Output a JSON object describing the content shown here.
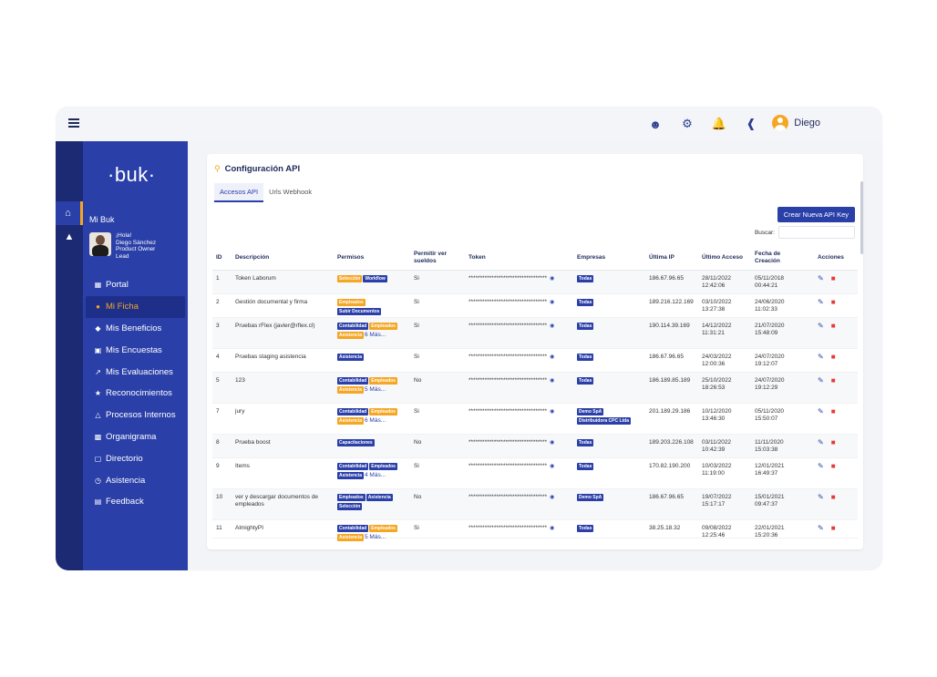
{
  "topbar": {
    "icons": [
      "user-search-icon",
      "gear-icon",
      "bell-icon",
      "megaphone-icon",
      "help-icon"
    ],
    "user_name": "Diego"
  },
  "sidebar": {
    "logo": "·buk·",
    "section": "Mi Buk",
    "profile": {
      "greeting": "¡Hola!",
      "name": "Diego Sánchez",
      "role": "Product Owner Lead"
    },
    "items": [
      {
        "label": "Portal",
        "icon": "portal-icon"
      },
      {
        "label": "Mi Ficha",
        "icon": "user-circle-icon",
        "active": true
      },
      {
        "label": "Mis Beneficios",
        "icon": "tag-icon"
      },
      {
        "label": "Mis Encuestas",
        "icon": "survey-icon"
      },
      {
        "label": "Mis Evaluaciones",
        "icon": "trend-icon"
      },
      {
        "label": "Reconocimientos",
        "icon": "trophy-icon"
      },
      {
        "label": "Procesos Internos",
        "icon": "process-icon"
      },
      {
        "label": "Organigrama",
        "icon": "org-chart-icon"
      },
      {
        "label": "Directorio",
        "icon": "directory-icon"
      },
      {
        "label": "Asistencia",
        "icon": "clock-icon"
      },
      {
        "label": "Feedback",
        "icon": "feedback-icon"
      }
    ]
  },
  "card": {
    "title": "Configuración API",
    "tabs": [
      "Accesos API",
      "Urls Webhook"
    ],
    "create_button": "Crear Nueva API Key",
    "search_label": "Buscar:",
    "columns": [
      "ID",
      "Descripción",
      "Permisos",
      "Permitir ver sueldos",
      "Token",
      "Empresas",
      "Última IP",
      "Último Acceso",
      "Fecha de Creación",
      "Acciones"
    ],
    "rows": [
      {
        "id": "1",
        "desc": "Token Laborum",
        "perms": [
          {
            "t": "Selección",
            "c": "orange"
          },
          {
            "t": "Workflow",
            "c": "blue"
          }
        ],
        "more": "",
        "sueldos": "Si",
        "token": "**********************************",
        "empresas": [
          "Todas"
        ],
        "ip": "186.67.96.65",
        "acceso": "28/11/2022 12:42:06",
        "creacion": "05/11/2018 00:44:21"
      },
      {
        "id": "2",
        "desc": "Gestión documental y firma",
        "perms": [
          {
            "t": "Empleados",
            "c": "orange"
          },
          {
            "t": "Subir Documentos",
            "c": "blue"
          }
        ],
        "more": "",
        "sueldos": "Si",
        "token": "**********************************",
        "empresas": [
          "Todas"
        ],
        "ip": "189.216.122.169",
        "acceso": "03/10/2022 13:27:38",
        "creacion": "24/06/2020 11:02:33"
      },
      {
        "id": "3",
        "desc": "Pruebas rFlex (javier@rflex.cl)",
        "perms": [
          {
            "t": "Contabilidad",
            "c": "blue"
          },
          {
            "t": "Empleados",
            "c": "orange"
          },
          {
            "t": "Asistencia",
            "c": "orange"
          }
        ],
        "more": "6 Más...",
        "sueldos": "Si",
        "token": "**********************************",
        "empresas": [
          "Todas"
        ],
        "ip": "190.114.39.169",
        "acceso": "14/12/2022 11:31:21",
        "creacion": "21/07/2020 15:48:09"
      },
      {
        "id": "4",
        "desc": "Pruebas staging asistencia",
        "perms": [
          {
            "t": "Asistencia",
            "c": "blue"
          }
        ],
        "more": "",
        "sueldos": "Si",
        "token": "**********************************",
        "empresas": [
          "Todas"
        ],
        "ip": "186.67.96.65",
        "acceso": "24/03/2022 12:00:36",
        "creacion": "24/07/2020 19:12:07"
      },
      {
        "id": "5",
        "desc": "123",
        "perms": [
          {
            "t": "Contabilidad",
            "c": "blue"
          },
          {
            "t": "Empleados",
            "c": "orange"
          },
          {
            "t": "Asistencia",
            "c": "orange"
          }
        ],
        "more": "5 Más...",
        "sueldos": "No",
        "token": "**********************************",
        "empresas": [
          "Todas"
        ],
        "ip": "186.189.85.189",
        "acceso": "25/10/2022 18:26:53",
        "creacion": "24/07/2020 19:12:29"
      },
      {
        "id": "7",
        "desc": "jury",
        "perms": [
          {
            "t": "Contabilidad",
            "c": "blue"
          },
          {
            "t": "Empleados",
            "c": "orange"
          },
          {
            "t": "Asistencia",
            "c": "orange"
          }
        ],
        "more": "6 Más...",
        "sueldos": "Si",
        "token": "**********************************",
        "empresas": [
          "Demo SpA",
          "Distribuidora CPC Ltda"
        ],
        "ip": "201.189.29.186",
        "acceso": "10/12/2020 13:46:30",
        "creacion": "05/11/2020 15:50:07"
      },
      {
        "id": "8",
        "desc": "Prueba boost",
        "perms": [
          {
            "t": "Capacitaciones",
            "c": "blue"
          }
        ],
        "more": "",
        "sueldos": "No",
        "token": "**********************************",
        "empresas": [
          "Todas"
        ],
        "ip": "189.203.226.108",
        "acceso": "03/11/2022 10:42:39",
        "creacion": "11/11/2020 15:03:38"
      },
      {
        "id": "9",
        "desc": "Items",
        "perms": [
          {
            "t": "Contabilidad",
            "c": "blue"
          },
          {
            "t": "Empleados",
            "c": "blue"
          },
          {
            "t": "Asistencia",
            "c": "blue"
          }
        ],
        "more": "4 Más...",
        "sueldos": "Si",
        "token": "**********************************",
        "empresas": [
          "Todas"
        ],
        "ip": "170.82.190.200",
        "acceso": "10/03/2022 11:19:00",
        "creacion": "12/01/2021 16:49:37"
      },
      {
        "id": "10",
        "desc": "ver y descargar documentos de empleados",
        "perms": [
          {
            "t": "Empleados",
            "c": "blue"
          },
          {
            "t": "Asistencia",
            "c": "blue"
          },
          {
            "t": "Selección",
            "c": "blue"
          }
        ],
        "more": "",
        "sueldos": "No",
        "token": "**********************************",
        "empresas": [
          "Demo SpA"
        ],
        "ip": "186.67.96.65",
        "acceso": "19/07/2022 15:17:17",
        "creacion": "15/01/2021 09:47:37"
      },
      {
        "id": "11",
        "desc": "AlmightyPI",
        "perms": [
          {
            "t": "Contabilidad",
            "c": "blue"
          },
          {
            "t": "Empleados",
            "c": "orange"
          },
          {
            "t": "Asistencia",
            "c": "orange"
          }
        ],
        "more": "5 Más...",
        "sueldos": "Si",
        "token": "**********************************",
        "empresas": [
          "Todas"
        ],
        "ip": "38.25.18.32",
        "acceso": "09/08/2022 12:25:46",
        "creacion": "22/01/2021 15:20:36"
      }
    ]
  }
}
